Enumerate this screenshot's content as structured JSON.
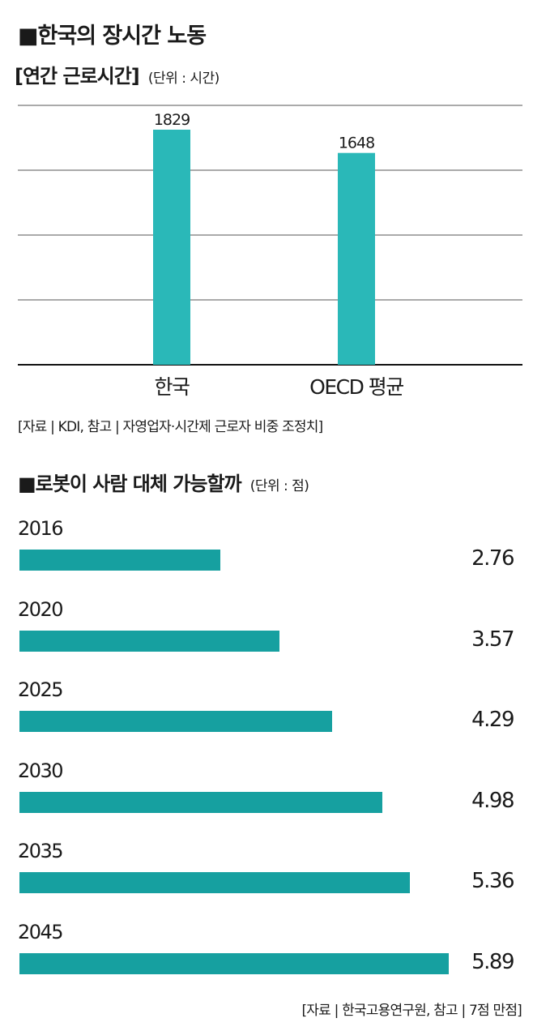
{
  "chart1": {
    "title": "■한국의 장시간 노동",
    "subtitle": "[연간 근로시간]",
    "unit": "(단위 : 시간)",
    "source": "[자료 | KDI, 참고 | 자영업자·시간제 근로자 비중 조정치]"
  },
  "chart2": {
    "title": "■로봇이 사람 대체 가능할까",
    "unit": "(단위 : 점)",
    "source": "[자료 | 한국고용연구원, 참고 | 7점 만점]"
  },
  "colors": {
    "bar_vertical": "#2ab8b8",
    "bar_horizontal": "#16a0a0",
    "gridline": "#555555",
    "axis": "#111111"
  },
  "chart_data": [
    {
      "type": "bar",
      "orientation": "vertical",
      "title": "한국의 장시간 노동",
      "subtitle": "연간 근로시간",
      "unit": "시간",
      "categories": [
        "한국",
        "OECD 평균"
      ],
      "values": [
        1829,
        1648
      ],
      "data_labels": [
        "1829",
        "1648"
      ],
      "ylim": [
        0,
        1829
      ],
      "grid": true
    },
    {
      "type": "bar",
      "orientation": "horizontal",
      "title": "로봇이 사람 대체 가능할까",
      "unit": "점",
      "categories": [
        "2016",
        "2020",
        "2025",
        "2030",
        "2035",
        "2045"
      ],
      "values": [
        2.76,
        3.57,
        4.29,
        4.98,
        5.36,
        5.89
      ],
      "data_labels": [
        "2.76",
        "3.57",
        "4.29",
        "4.98",
        "5.36",
        "5.89"
      ],
      "xlim": [
        0,
        7
      ],
      "grid": false
    }
  ]
}
